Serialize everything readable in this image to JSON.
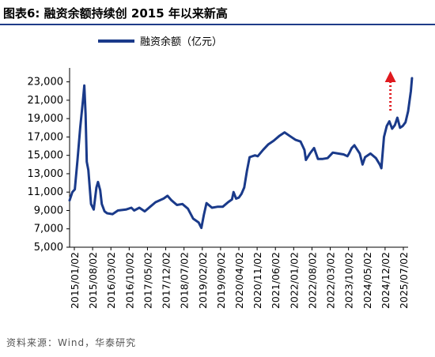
{
  "header": {
    "figure_label": "图表6:",
    "title": "融资余额持续创 2015 年以来新高"
  },
  "source": "资料来源：Wind，华泰研究",
  "colors": {
    "series": "#1a3a8a",
    "arrow": "#e0191e",
    "axis": "#000000"
  },
  "chart_data": {
    "type": "line",
    "title": "融资余额持续创 2015 年以来新高",
    "xlabel": "",
    "ylabel": "",
    "ylim": [
      5000,
      24000
    ],
    "yticks": [
      5000,
      7000,
      9000,
      11000,
      13000,
      15000,
      17000,
      19000,
      21000,
      23000
    ],
    "ytick_labels": [
      "5,000",
      "7,000",
      "9,000",
      "11,000",
      "13,000",
      "15,000",
      "17,000",
      "19,000",
      "21,000",
      "23,000"
    ],
    "xtick_labels": [
      "2015/01/02",
      "2015/08/02",
      "2016/03/02",
      "2016/10/02",
      "2017/05/02",
      "2017/12/02",
      "2018/07/02",
      "2019/02/02",
      "2019/09/02",
      "2020/04/02",
      "2020/11/02",
      "2021/06/02",
      "2022/01/02",
      "2022/08/02",
      "2022/03/02",
      "2023/10/02",
      "2024/05/02",
      "2024/12/02",
      "2025/07/02"
    ],
    "grid": false,
    "legend": "top-left",
    "series": [
      {
        "name": "融资余额（亿元）",
        "x": [
          "2015/01/02",
          "2015/02/02",
          "2015/03/02",
          "2015/04/02",
          "2015/05/02",
          "2015/06/02",
          "2015/06/18",
          "2015/07/02",
          "2015/07/15",
          "2015/08/02",
          "2015/09/02",
          "2015/10/02",
          "2015/11/02",
          "2015/11/20",
          "2015/12/15",
          "2016/01/02",
          "2016/02/02",
          "2016/03/02",
          "2016/05/02",
          "2016/07/02",
          "2016/10/02",
          "2016/12/02",
          "2017/01/02",
          "2017/03/02",
          "2017/05/02",
          "2017/07/02",
          "2017/09/02",
          "2017/12/02",
          "2018/01/15",
          "2018/03/02",
          "2018/05/02",
          "2018/07/02",
          "2018/09/02",
          "2018/11/02",
          "2019/01/02",
          "2019/02/02",
          "2019/03/02",
          "2019/04/02",
          "2019/06/02",
          "2019/08/02",
          "2019/10/02",
          "2019/12/02",
          "2020/01/15",
          "2020/02/02",
          "2020/03/02",
          "2020/04/02",
          "2020/05/02",
          "2020/06/02",
          "2020/07/02",
          "2020/08/02",
          "2020/10/02",
          "2020/11/02",
          "2021/01/02",
          "2021/03/02",
          "2021/05/02",
          "2021/07/02",
          "2021/09/02",
          "2021/11/02",
          "2022/01/02",
          "2022/03/02",
          "2022/04/15",
          "2022/05/02",
          "2022/06/15",
          "2022/08/02",
          "2022/09/15",
          "2022/11/02",
          "2023/01/02",
          "2023/03/02",
          "2023/05/02",
          "2023/07/02",
          "2023/08/15",
          "2023/09/02",
          "2023/10/02",
          "2023/11/02",
          "2024/01/02",
          "2024/02/02",
          "2024/03/02",
          "2024/05/02",
          "2024/07/02",
          "2024/08/15",
          "2024/09/02",
          "2024/10/02",
          "2024/11/02",
          "2024/12/02",
          "2025/01/02",
          "2025/02/02",
          "2025/03/02",
          "2025/04/02",
          "2025/05/02",
          "2025/06/02",
          "2025/07/02",
          "2025/08/02",
          "2025/08/15"
        ],
        "values": [
          10100,
          11000,
          11300,
          14500,
          18000,
          21000,
          22600,
          19500,
          14300,
          13400,
          9700,
          9100,
          11500,
          12100,
          11200,
          9700,
          8900,
          8700,
          8600,
          9000,
          9100,
          9300,
          9000,
          9300,
          8900,
          9400,
          9900,
          10300,
          10600,
          10100,
          9600,
          9700,
          9200,
          8100,
          7700,
          7100,
          8500,
          9800,
          9300,
          9400,
          9400,
          9900,
          10200,
          11000,
          10300,
          10400,
          10800,
          11500,
          13300,
          14800,
          15000,
          14900,
          15600,
          16200,
          16600,
          17100,
          17500,
          17100,
          16700,
          16500,
          15600,
          14500,
          15200,
          15800,
          14600,
          14600,
          14700,
          15300,
          15200,
          15100,
          14900,
          15200,
          15800,
          16100,
          15200,
          14000,
          14800,
          15200,
          14700,
          14000,
          13600,
          17000,
          18200,
          18700,
          17900,
          18300,
          19100,
          18000,
          18200,
          18600,
          19800,
          22000,
          23400
        ]
      }
    ],
    "annotations": [
      {
        "type": "arrow",
        "style": "dotted",
        "direction": "up",
        "color": "#e0191e",
        "at_x": "2025/06/02"
      }
    ]
  }
}
